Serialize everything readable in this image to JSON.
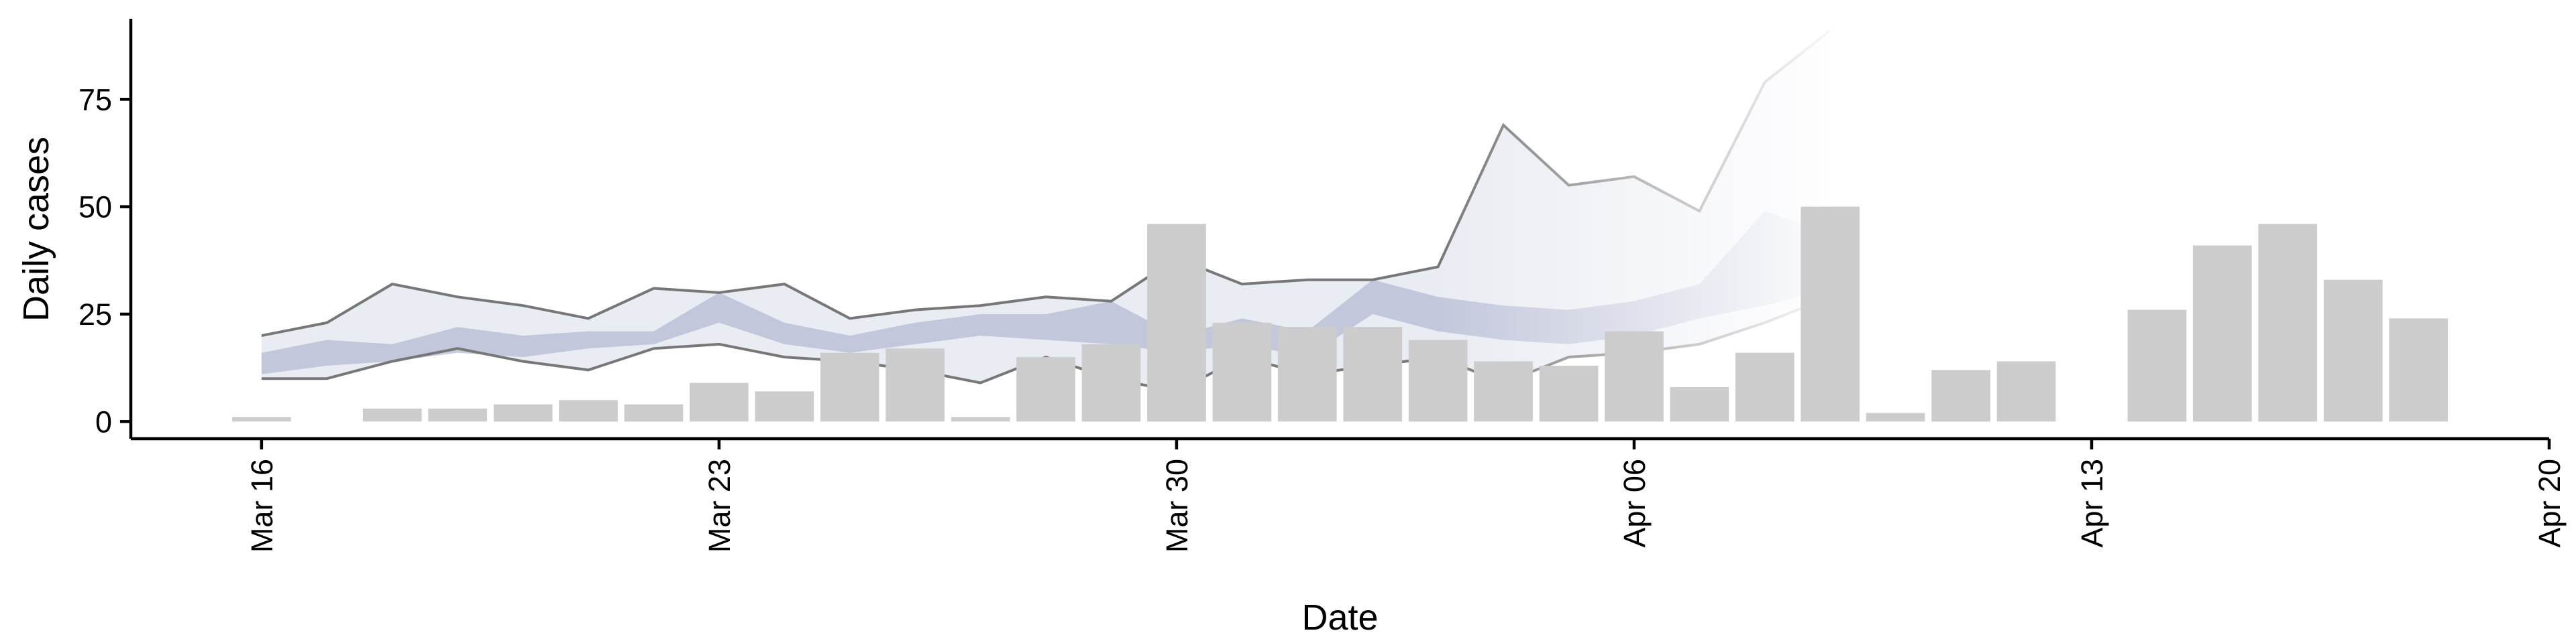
{
  "chart_data": {
    "type": "bar",
    "title": "",
    "xlabel": "Date",
    "ylabel": "Daily cases",
    "xlim": [
      "2020-03-14",
      "2020-04-20"
    ],
    "ylim": [
      -4,
      95
    ],
    "x_ticks": [
      "2020-03-16",
      "2020-03-23",
      "2020-03-30",
      "2020-04-06",
      "2020-04-13",
      "2020-04-20"
    ],
    "x_tick_labels": [
      "Mar 16",
      "Mar 23",
      "Mar 30",
      "Apr 06",
      "Apr 13",
      "Apr 20"
    ],
    "y_ticks": [
      0,
      25,
      50,
      75
    ],
    "y_tick_labels": [
      "0",
      "25",
      "50",
      "75"
    ],
    "grid": false,
    "legend": "none",
    "colors": {
      "bars": "#cccccc",
      "outer_band": "#eaecf3",
      "inner_band": "#b4bbd3",
      "band_lines": "#777777"
    },
    "bars": {
      "x": [
        "2020-03-16",
        "2020-03-18",
        "2020-03-19",
        "2020-03-20",
        "2020-03-21",
        "2020-03-22",
        "2020-03-23",
        "2020-03-24",
        "2020-03-25",
        "2020-03-26",
        "2020-03-27",
        "2020-03-28",
        "2020-03-29",
        "2020-03-30",
        "2020-03-31",
        "2020-04-01",
        "2020-04-02",
        "2020-04-03",
        "2020-04-04",
        "2020-04-05",
        "2020-04-06",
        "2020-04-07",
        "2020-04-08",
        "2020-04-09",
        "2020-04-10",
        "2020-04-11",
        "2020-04-12",
        "2020-04-14",
        "2020-04-15",
        "2020-04-16",
        "2020-04-17",
        "2020-04-18"
      ],
      "values": [
        1,
        3,
        3,
        4,
        5,
        4,
        9,
        7,
        16,
        17,
        1,
        15,
        18,
        46,
        23,
        22,
        22,
        19,
        14,
        13,
        21,
        8,
        16,
        50,
        2,
        12,
        14,
        26,
        41,
        46,
        33,
        24
      ]
    },
    "band": {
      "x": [
        "2020-03-16",
        "2020-03-17",
        "2020-03-18",
        "2020-03-19",
        "2020-03-20",
        "2020-03-21",
        "2020-03-22",
        "2020-03-23",
        "2020-03-24",
        "2020-03-25",
        "2020-03-26",
        "2020-03-27",
        "2020-03-28",
        "2020-03-29",
        "2020-03-30",
        "2020-03-31",
        "2020-04-01",
        "2020-04-02",
        "2020-04-03",
        "2020-04-04",
        "2020-04-05",
        "2020-04-06",
        "2020-04-07",
        "2020-04-08",
        "2020-04-09"
      ],
      "outer_upper": [
        20,
        23,
        32,
        29,
        27,
        24,
        31,
        30,
        32,
        24,
        26,
        27,
        29,
        28,
        38,
        32,
        33,
        33,
        36,
        69,
        55,
        57,
        49,
        79,
        91
      ],
      "outer_lower": [
        10,
        10,
        14,
        17,
        14,
        12,
        17,
        18,
        15,
        14,
        12,
        9,
        15,
        10,
        7,
        15,
        11,
        13,
        15,
        9,
        15,
        16,
        18,
        23,
        29
      ],
      "inner_upper": [
        16,
        19,
        18,
        22,
        20,
        21,
        21,
        30,
        23,
        20,
        23,
        25,
        25,
        28,
        20,
        24,
        21,
        33,
        29,
        27,
        26,
        28,
        32,
        49,
        44
      ],
      "inner_lower": [
        11,
        13,
        14,
        16,
        15,
        17,
        18,
        23,
        18,
        16,
        18,
        20,
        19,
        18,
        16,
        18,
        15,
        25,
        21,
        19,
        18,
        20,
        24,
        27,
        31
      ],
      "fade_start": "2020-04-03"
    }
  }
}
